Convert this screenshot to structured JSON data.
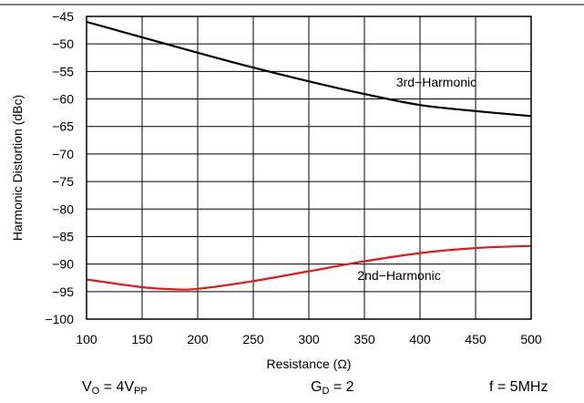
{
  "chart_data": {
    "type": "line",
    "title": "",
    "xlabel": "Resistance (Ω)",
    "ylabel": "Harmonic Distortion (dBc)",
    "xlim": [
      100,
      500
    ],
    "ylim": [
      -100,
      -45
    ],
    "x_ticks": [
      "100",
      "150",
      "200",
      "250",
      "300",
      "350",
      "400",
      "450",
      "500"
    ],
    "y_ticks": [
      "−45",
      "−50",
      "−55",
      "−60",
      "−65",
      "−70",
      "−75",
      "−80",
      "−85",
      "−90",
      "−95",
      "−100"
    ],
    "grid": true,
    "series": [
      {
        "name": "3rd−Harmonic",
        "color": "#000000",
        "x": [
          100,
          150,
          200,
          250,
          300,
          350,
          400,
          450,
          500
        ],
        "y": [
          -46.0,
          -48.8,
          -51.6,
          -54.3,
          -56.8,
          -59.1,
          -61.1,
          -62.2,
          -63.1
        ]
      },
      {
        "name": "2nd−Harmonic",
        "color": "#e8161b",
        "x": [
          100,
          150,
          180,
          200,
          250,
          300,
          350,
          400,
          450,
          500
        ],
        "y": [
          -92.8,
          -94.2,
          -94.6,
          -94.5,
          -93.1,
          -91.3,
          -89.5,
          -88.0,
          -87.1,
          -86.7
        ]
      }
    ]
  },
  "conditions": {
    "vo_main": "V",
    "vo_sub": "O",
    "vo_eq": " = 4V",
    "vo_unit_sub": "PP",
    "gd_main": "G",
    "gd_sub": "D",
    "gd_eq": " = 2",
    "freq": "f = 5MHz"
  }
}
